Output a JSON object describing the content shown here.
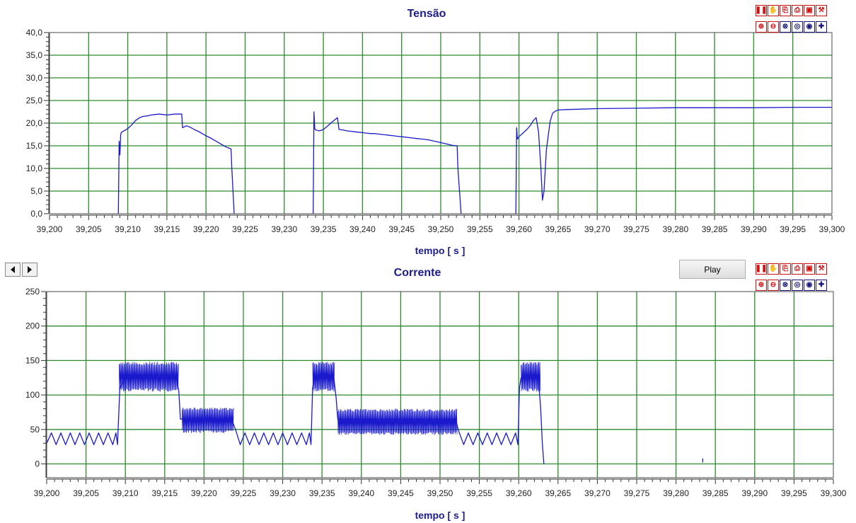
{
  "chart_data": [
    {
      "type": "line",
      "title": "Tensão",
      "xlabel": "tempo [ s ]",
      "ylabel": "",
      "xlim": [
        39.2,
        39.3
      ],
      "ylim": [
        0,
        40
      ],
      "grid": true,
      "line_color": "#1a1acc",
      "grid_color": "#2d8a2d",
      "title_color": "#1c1c8c",
      "x_ticks": [
        "39,200",
        "39,205",
        "39,210",
        "39,215",
        "39,220",
        "39,225",
        "39,230",
        "39,235",
        "39,240",
        "39,245",
        "39,250",
        "39,255",
        "39,260",
        "39,265",
        "39,270",
        "39,275",
        "39,280",
        "39,285",
        "39,290",
        "39,295",
        "39,300"
      ],
      "y_ticks": [
        "0,0",
        "5,0",
        "10,0",
        "15,0",
        "20,0",
        "25,0",
        "30,0",
        "35,0",
        "40,0"
      ],
      "series": [
        {
          "x": [
            39.2088,
            39.2089,
            39.209,
            39.2091,
            39.2092,
            39.2095,
            39.21,
            39.2105,
            39.211,
            39.2115,
            39.212,
            39.2125,
            39.213,
            39.2135,
            39.214,
            39.2145,
            39.215,
            39.2155,
            39.216,
            39.2165,
            39.2169,
            39.217,
            39.2175,
            39.218,
            39.2185,
            39.219,
            39.2195,
            39.22,
            39.2205,
            39.221,
            39.2215,
            39.222,
            39.2225,
            39.2232,
            39.2233,
            39.2236
          ],
          "y": [
            0,
            16,
            13,
            17.5,
            18,
            18.3,
            18.8,
            19.6,
            20.6,
            21.2,
            21.5,
            21.6,
            21.8,
            21.9,
            22,
            21.9,
            21.8,
            21.9,
            22,
            22,
            22,
            19,
            19.4,
            19.1,
            18.6,
            18.2,
            17.7,
            17.2,
            16.8,
            16.3,
            15.8,
            15.3,
            14.8,
            14.3,
            10,
            0
          ]
        },
        {
          "x": [
            39.2337,
            39.2338,
            39.2339,
            39.234,
            39.2345,
            39.235,
            39.2355,
            39.236,
            39.2365,
            39.2368,
            39.237,
            39.2375,
            39.238,
            39.2385,
            39.239,
            39.2395,
            39.24,
            39.2405,
            39.241,
            39.2415,
            39.242,
            39.2425,
            39.243,
            39.2435,
            39.244,
            39.2445,
            39.245,
            39.2455,
            39.246,
            39.2465,
            39.247,
            39.2475,
            39.248,
            39.2485,
            39.249,
            39.2495,
            39.25,
            39.2505,
            39.251,
            39.2515,
            39.2521,
            39.2522,
            39.2526
          ],
          "y": [
            0,
            22.5,
            18.8,
            18.5,
            18.3,
            18.6,
            19.3,
            20.1,
            20.8,
            21.2,
            18.6,
            18.5,
            18.3,
            18.2,
            18.1,
            18,
            17.9,
            17.8,
            17.7,
            17.7,
            17.6,
            17.5,
            17.4,
            17.3,
            17.2,
            17.1,
            17,
            16.9,
            16.8,
            16.7,
            16.6,
            16.5,
            16.4,
            16.3,
            16.1,
            15.9,
            15.7,
            15.5,
            15.3,
            15.1,
            15,
            10,
            0
          ]
        },
        {
          "x": [
            39.2596,
            39.2597,
            39.2598,
            39.26,
            39.2605,
            39.261,
            39.2615,
            39.2618,
            39.2622,
            39.2625,
            39.2628,
            39.263,
            39.2632,
            39.2635,
            39.2638,
            39.264,
            39.2643,
            39.2648,
            39.265,
            39.266,
            39.268,
            39.27,
            39.275,
            39.28,
            39.285,
            39.29,
            39.295,
            39.3
          ],
          "y": [
            0,
            19,
            16.5,
            17,
            17.8,
            18.6,
            19.6,
            20.5,
            21.2,
            18,
            10,
            3,
            5,
            14,
            18,
            20.5,
            22.2,
            22.8,
            22.9,
            23,
            23.1,
            23.2,
            23.3,
            23.4,
            23.4,
            23.4,
            23.5,
            23.5
          ]
        }
      ]
    },
    {
      "type": "line",
      "title": "Corrente",
      "xlabel": "tempo [ s ]",
      "ylabel": "",
      "xlim": [
        39.2,
        39.3
      ],
      "ylim": [
        -20,
        250
      ],
      "grid": true,
      "line_color": "#1a1acc",
      "grid_color": "#2d8a2d",
      "title_color": "#1c1c8c",
      "x_ticks": [
        "39,200",
        "39,205",
        "39,210",
        "39,215",
        "39,220",
        "39,225",
        "39,230",
        "39,235",
        "39,240",
        "39,245",
        "39,250",
        "39,255",
        "39,260",
        "39,265",
        "39,270",
        "39,275",
        "39,280",
        "39,285",
        "39,290",
        "39,295",
        "39,300"
      ],
      "y_ticks": [
        "0",
        "50",
        "100",
        "150",
        "200",
        "250"
      ],
      "series": [
        {
          "x": [
            39.2,
            39.2006,
            39.2012,
            39.2018,
            39.2024,
            39.203,
            39.2036,
            39.2042,
            39.2048,
            39.2054,
            39.206,
            39.2066,
            39.2072,
            39.2078,
            39.2084,
            39.2088,
            39.209,
            39.2093,
            39.21,
            39.2165,
            39.2168,
            39.217,
            39.2175,
            39.2235,
            39.224,
            39.2246,
            39.2252,
            39.2258,
            39.2264,
            39.227,
            39.2276,
            39.2282,
            39.2288,
            39.2294,
            39.23,
            39.2306,
            39.2312,
            39.2318,
            39.2324,
            39.233,
            39.2334,
            39.2336,
            39.2338,
            39.234,
            39.2365,
            39.2368,
            39.237,
            39.2375,
            39.252,
            39.2523,
            39.253,
            39.2536,
            39.2542,
            39.2548,
            39.2554,
            39.256,
            39.2566,
            39.2572,
            39.2578,
            39.2584,
            39.259,
            39.2596,
            39.2599,
            39.2601,
            39.2603,
            39.2625,
            39.2628,
            39.263,
            39.2632
          ],
          "y": [
            30,
            45,
            28,
            45,
            28,
            45,
            28,
            45,
            28,
            45,
            28,
            45,
            28,
            45,
            28,
            45,
            28,
            110,
            125,
            125,
            105,
            65,
            65,
            65,
            50,
            28,
            45,
            28,
            45,
            28,
            45,
            28,
            45,
            28,
            45,
            28,
            45,
            28,
            45,
            28,
            45,
            28,
            110,
            125,
            125,
            95,
            65,
            65,
            65,
            50,
            28,
            45,
            28,
            45,
            28,
            45,
            28,
            45,
            28,
            45,
            28,
            45,
            28,
            110,
            125,
            125,
            80,
            30,
            0
          ]
        },
        {
          "x": [
            39.2834,
            39.2834
          ],
          "y": [
            2,
            8
          ]
        }
      ],
      "bands": [
        {
          "x": [
            39.2092,
            39.2168
          ],
          "lo": 105,
          "hi": 148
        },
        {
          "x": [
            39.2172,
            39.2238
          ],
          "lo": 45,
          "hi": 82
        },
        {
          "x": [
            39.2338,
            39.2366
          ],
          "lo": 105,
          "hi": 148
        },
        {
          "x": [
            39.237,
            39.2522
          ],
          "lo": 42,
          "hi": 80
        },
        {
          "x": [
            39.2603,
            39.2628
          ],
          "lo": 105,
          "hi": 148
        }
      ]
    }
  ],
  "controls": {
    "play_label": "Play"
  }
}
